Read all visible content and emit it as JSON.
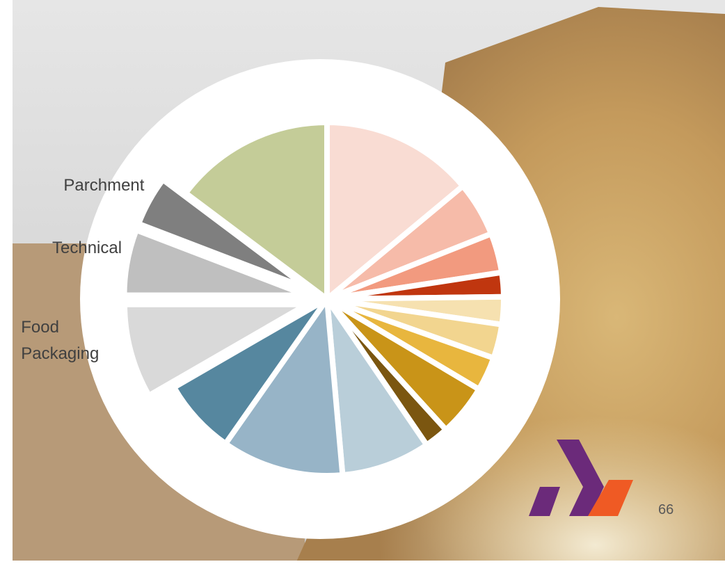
{
  "chart_data": {
    "type": "pie",
    "categories": [
      null,
      null,
      null,
      null,
      null,
      null,
      null,
      null,
      null,
      null,
      null,
      null,
      "Food Packaging",
      "Technical",
      "Parchment",
      null
    ],
    "values": [
      13.9,
      5,
      3.6,
      2.2,
      2.5,
      3.1,
      3.1,
      4.7,
      2.2,
      8.1,
      11.1,
      6.9,
      8.3,
      5.8,
      4.4,
      14.7
    ],
    "colors": [
      "#f9dcd3",
      "#f6bba9",
      "#f29a7f",
      "#c0360f",
      "#f6e1b0",
      "#f2d58f",
      "#e8b63e",
      "#c99418",
      "#7b5610",
      "#b9ced9",
      "#97b4c7",
      "#56879f",
      "#d9d9d9",
      "#bfbfbf",
      "#7f7f7f",
      "#c4cc98"
    ],
    "start_angle": 0,
    "direction": "clockwise"
  },
  "page_number": "66"
}
